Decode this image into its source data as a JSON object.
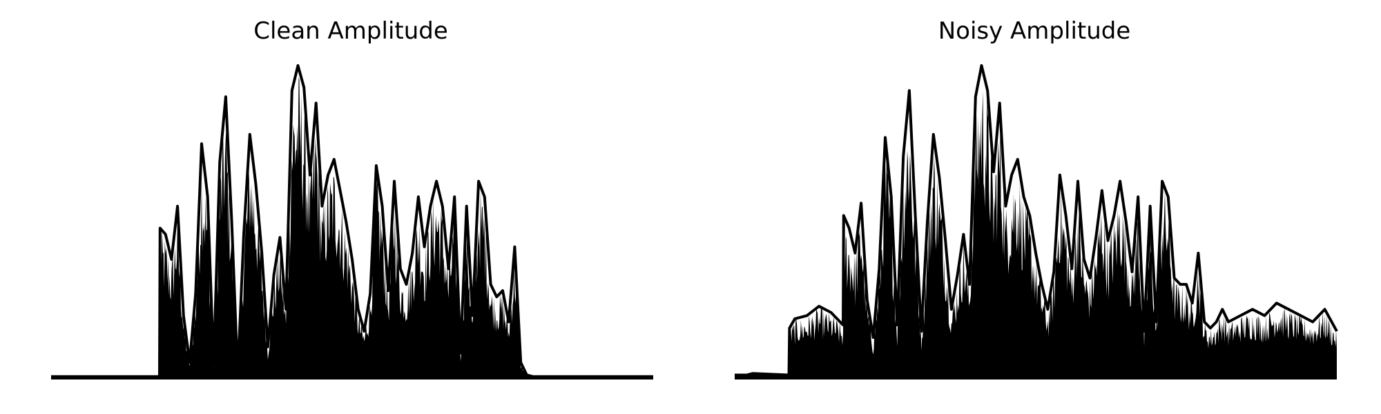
{
  "figure": {
    "foreground": "#000000",
    "background": "#ffffff"
  },
  "chart_data": [
    {
      "type": "area",
      "title": "Clean Amplitude",
      "xlabel": "",
      "ylabel": "",
      "axes_visible": false,
      "grid": false,
      "legend": "none",
      "ylim": [
        0,
        1
      ],
      "envelope_x": [
        0,
        0.18,
        0.181,
        0.19,
        0.2,
        0.21,
        0.22,
        0.23,
        0.24,
        0.25,
        0.26,
        0.27,
        0.28,
        0.29,
        0.3,
        0.31,
        0.32,
        0.33,
        0.34,
        0.35,
        0.36,
        0.37,
        0.38,
        0.39,
        0.4,
        0.41,
        0.42,
        0.43,
        0.44,
        0.45,
        0.46,
        0.47,
        0.48,
        0.49,
        0.5,
        0.51,
        0.52,
        0.53,
        0.54,
        0.55,
        0.56,
        0.57,
        0.58,
        0.59,
        0.6,
        0.61,
        0.62,
        0.63,
        0.64,
        0.65,
        0.66,
        0.67,
        0.68,
        0.69,
        0.7,
        0.71,
        0.72,
        0.73,
        0.74,
        0.75,
        0.76,
        0.77,
        0.78,
        0.79,
        0.8,
        0.81,
        0.82,
        0.823,
        0.83,
        1.0
      ],
      "envelope_y": [
        0.005,
        0.005,
        0.48,
        0.46,
        0.38,
        0.55,
        0.2,
        0.05,
        0.27,
        0.75,
        0.58,
        0.04,
        0.69,
        0.9,
        0.5,
        0.01,
        0.46,
        0.78,
        0.62,
        0.4,
        0.1,
        0.33,
        0.45,
        0.22,
        0.92,
        1.0,
        0.93,
        0.65,
        0.88,
        0.55,
        0.65,
        0.7,
        0.6,
        0.5,
        0.38,
        0.22,
        0.15,
        0.27,
        0.68,
        0.55,
        0.28,
        0.63,
        0.35,
        0.3,
        0.4,
        0.58,
        0.42,
        0.55,
        0.63,
        0.55,
        0.35,
        0.58,
        0.08,
        0.55,
        0.2,
        0.63,
        0.58,
        0.3,
        0.26,
        0.28,
        0.18,
        0.42,
        0.05,
        0.01,
        0.005,
        0.005,
        0.005,
        0.005,
        0.005,
        0.005
      ]
    },
    {
      "type": "area",
      "title": "Noisy Amplitude",
      "xlabel": "",
      "ylabel": "",
      "axes_visible": false,
      "grid": false,
      "legend": "none",
      "ylim": [
        0,
        1
      ],
      "envelope_x": [
        0,
        0.02,
        0.03,
        0.09,
        0.091,
        0.1,
        0.12,
        0.14,
        0.16,
        0.18,
        0.181,
        0.19,
        0.2,
        0.21,
        0.22,
        0.23,
        0.24,
        0.25,
        0.26,
        0.27,
        0.28,
        0.29,
        0.3,
        0.31,
        0.32,
        0.33,
        0.34,
        0.35,
        0.36,
        0.37,
        0.38,
        0.39,
        0.4,
        0.41,
        0.42,
        0.43,
        0.44,
        0.45,
        0.46,
        0.47,
        0.48,
        0.49,
        0.5,
        0.51,
        0.52,
        0.53,
        0.54,
        0.55,
        0.56,
        0.57,
        0.58,
        0.59,
        0.6,
        0.61,
        0.62,
        0.63,
        0.64,
        0.65,
        0.66,
        0.67,
        0.68,
        0.69,
        0.7,
        0.71,
        0.72,
        0.73,
        0.74,
        0.75,
        0.76,
        0.77,
        0.78,
        0.79,
        0.8,
        0.81,
        0.82,
        0.84,
        0.86,
        0.88,
        0.9,
        0.92,
        0.94,
        0.96,
        0.98,
        1.0
      ],
      "envelope_y": [
        0.01,
        0.01,
        0.015,
        0.01,
        0.16,
        0.19,
        0.2,
        0.23,
        0.21,
        0.17,
        0.52,
        0.48,
        0.4,
        0.56,
        0.25,
        0.13,
        0.35,
        0.77,
        0.58,
        0.17,
        0.71,
        0.92,
        0.52,
        0.15,
        0.5,
        0.78,
        0.64,
        0.44,
        0.22,
        0.33,
        0.46,
        0.3,
        0.9,
        1.0,
        0.92,
        0.66,
        0.88,
        0.55,
        0.65,
        0.7,
        0.58,
        0.52,
        0.4,
        0.3,
        0.22,
        0.34,
        0.65,
        0.52,
        0.35,
        0.63,
        0.38,
        0.32,
        0.45,
        0.6,
        0.44,
        0.52,
        0.63,
        0.5,
        0.34,
        0.58,
        0.15,
        0.55,
        0.18,
        0.63,
        0.58,
        0.32,
        0.3,
        0.3,
        0.24,
        0.4,
        0.18,
        0.16,
        0.18,
        0.22,
        0.18,
        0.2,
        0.22,
        0.2,
        0.24,
        0.22,
        0.2,
        0.18,
        0.22,
        0.15
      ]
    }
  ]
}
